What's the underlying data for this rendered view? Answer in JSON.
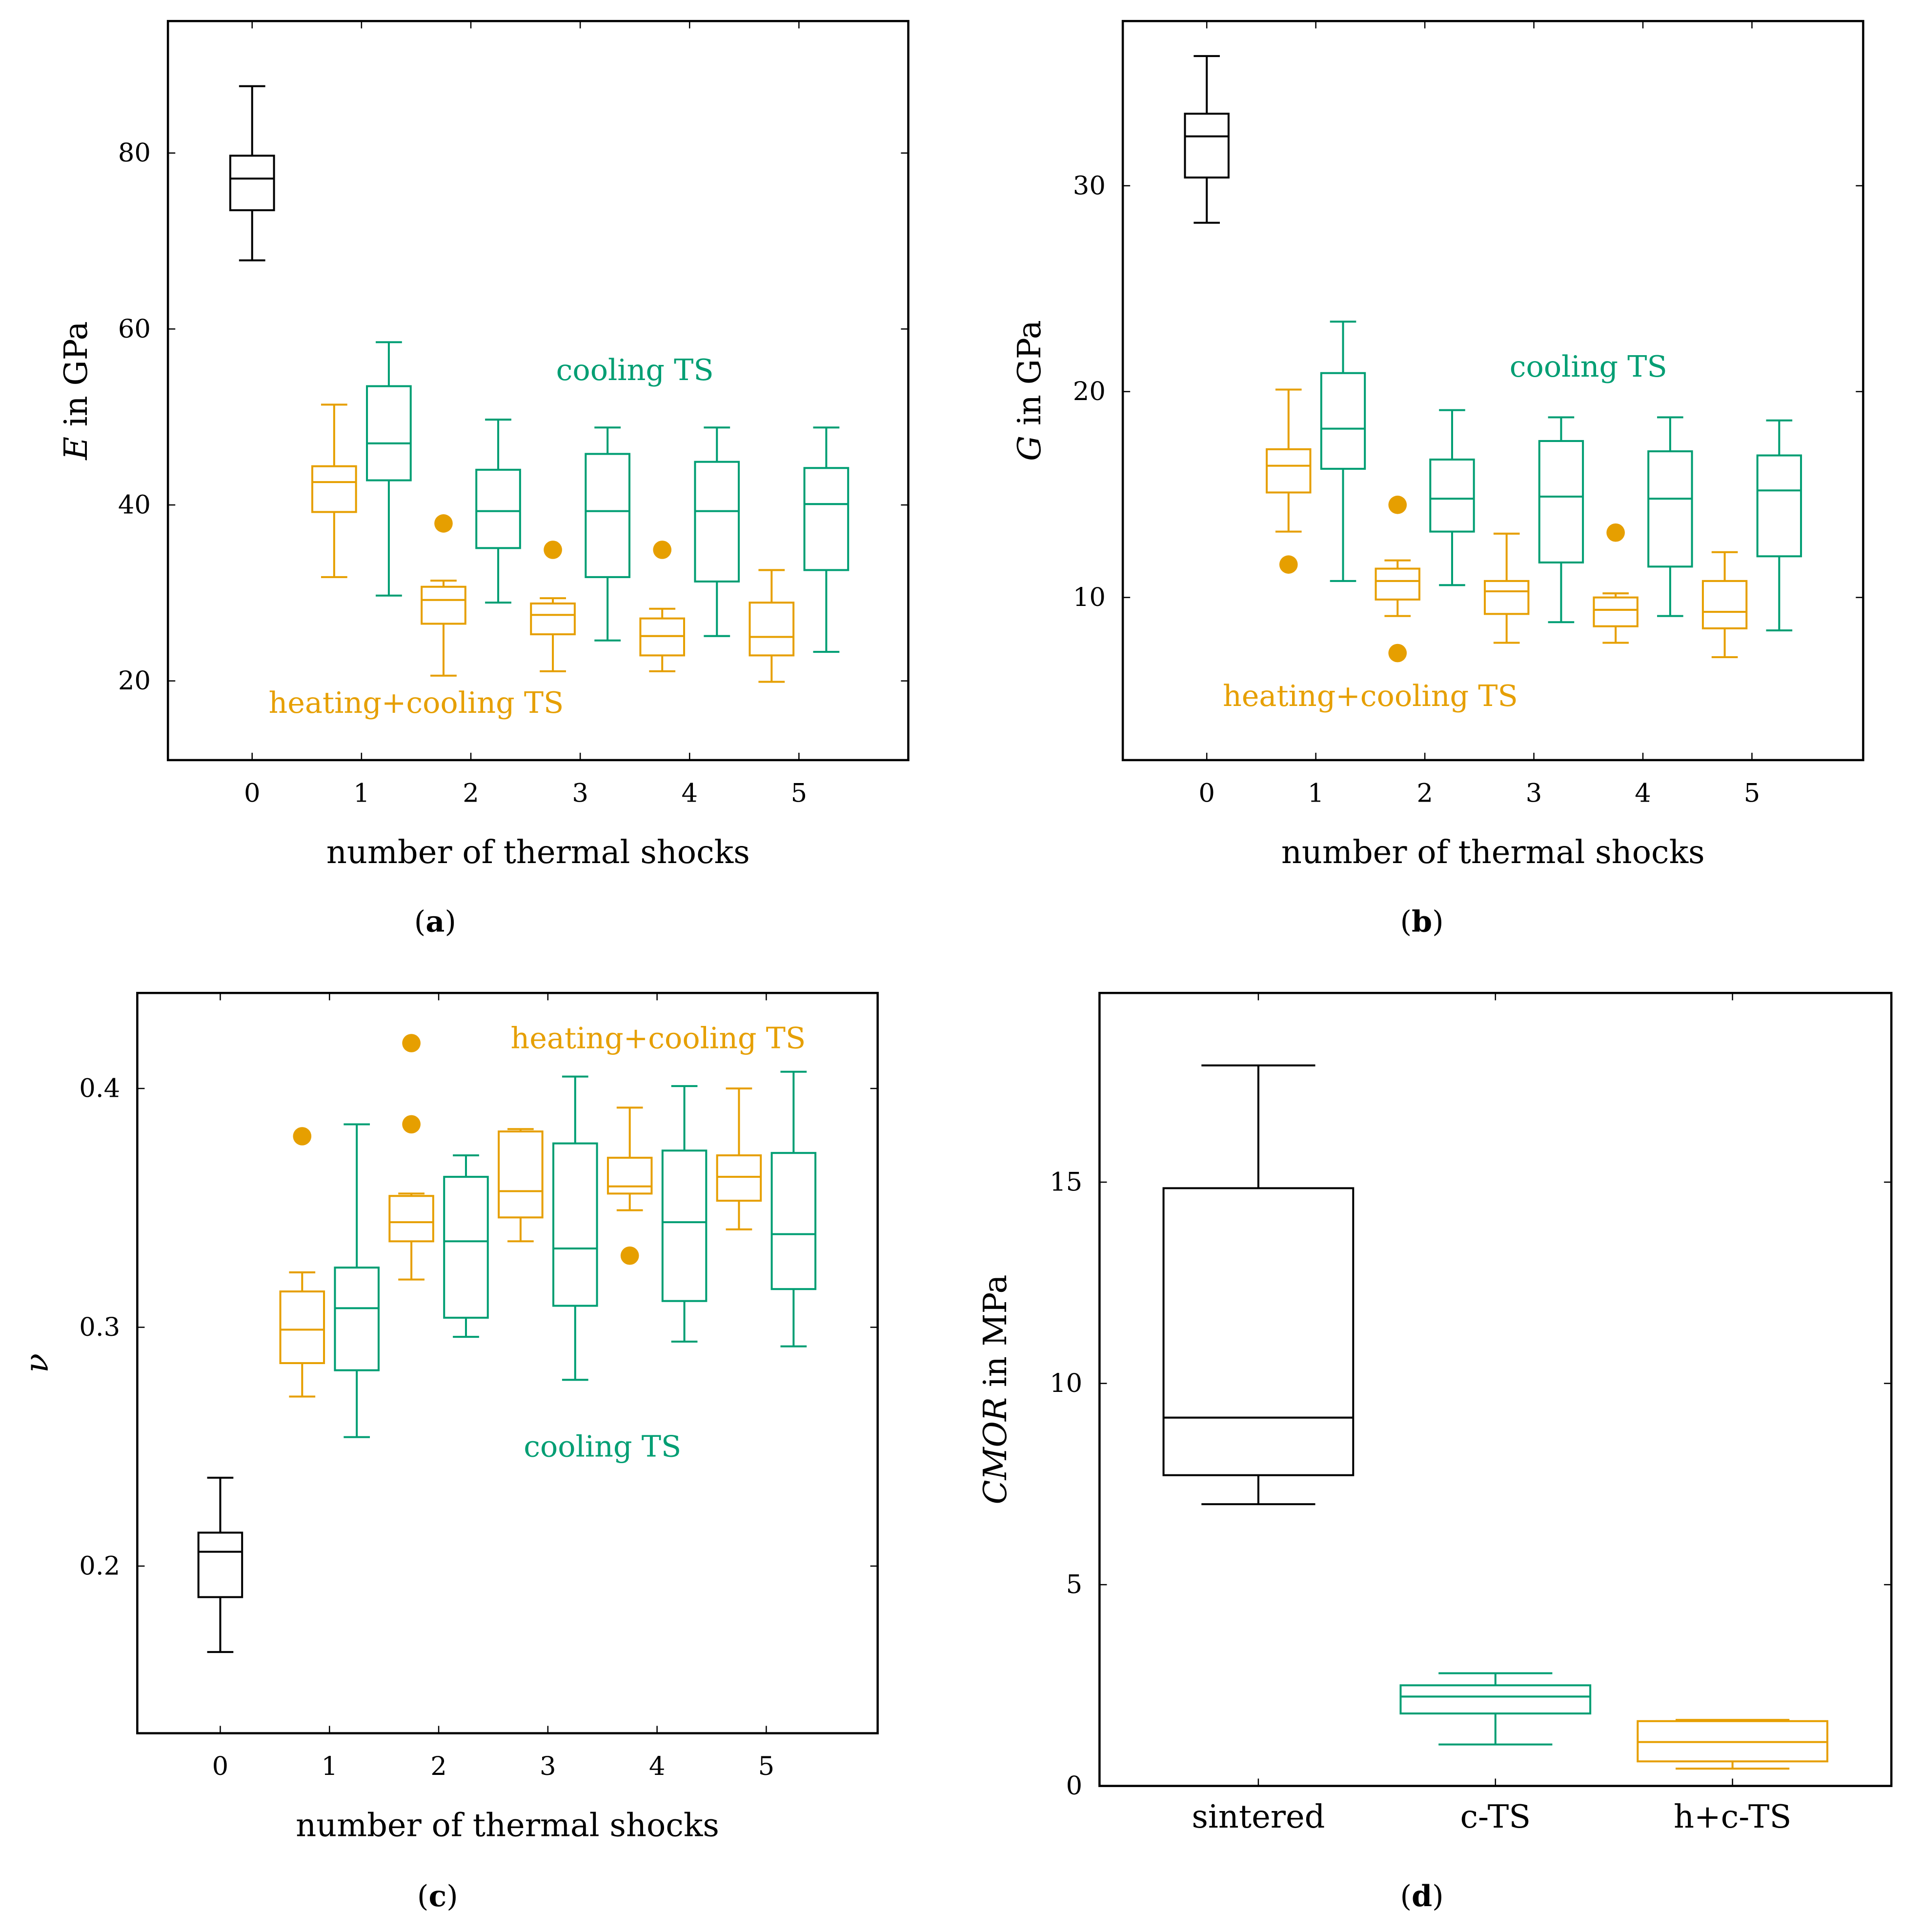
{
  "colors": {
    "sintered": "#000000",
    "heating_cooling": "#E69F00",
    "cooling": "#009E73"
  },
  "chart_data": [
    {
      "type": "box",
      "id": "a",
      "caption_letter": "a",
      "xlabel": "number of thermal shocks",
      "ylabel_var": "E",
      "ylabel_rest": " in GPa",
      "xlim": [
        -0.77,
        6.0
      ],
      "ylim": [
        11,
        95
      ],
      "xticks": [
        0,
        1,
        2,
        3,
        4,
        5
      ],
      "yticks": [
        20,
        40,
        60,
        80
      ],
      "box_width": 0.4,
      "annotations": [
        {
          "text": "cooling TS",
          "series": "cooling",
          "x": 3.5,
          "y": 55.3
        },
        {
          "text": "heating+cooling TS",
          "series": "heating_cooling",
          "x": 1.5,
          "y": 17.5
        }
      ],
      "boxes": [
        {
          "series": "sintered",
          "x": 0,
          "low": 67.8,
          "q1": 73.5,
          "median": 77.1,
          "q3": 79.7,
          "high": 87.6,
          "outliers": []
        },
        {
          "series": "heating_cooling",
          "x": 0.75,
          "low": 31.8,
          "q1": 39.2,
          "median": 42.6,
          "q3": 44.4,
          "high": 51.4,
          "outliers": []
        },
        {
          "series": "cooling",
          "x": 1.25,
          "low": 29.7,
          "q1": 42.8,
          "median": 47.0,
          "q3": 53.5,
          "high": 58.5,
          "outliers": []
        },
        {
          "series": "heating_cooling",
          "x": 1.75,
          "low": 20.6,
          "q1": 26.5,
          "median": 29.2,
          "q3": 30.7,
          "high": 31.4,
          "outliers": [
            37.9
          ]
        },
        {
          "series": "cooling",
          "x": 2.25,
          "low": 28.9,
          "q1": 35.1,
          "median": 39.3,
          "q3": 44.0,
          "high": 49.7,
          "outliers": []
        },
        {
          "series": "heating_cooling",
          "x": 2.75,
          "low": 21.1,
          "q1": 25.3,
          "median": 27.5,
          "q3": 28.8,
          "high": 29.4,
          "outliers": [
            34.9
          ]
        },
        {
          "series": "cooling",
          "x": 3.25,
          "low": 24.6,
          "q1": 31.8,
          "median": 39.3,
          "q3": 45.8,
          "high": 48.8,
          "outliers": []
        },
        {
          "series": "heating_cooling",
          "x": 3.75,
          "low": 21.1,
          "q1": 22.9,
          "median": 25.1,
          "q3": 27.1,
          "high": 28.2,
          "outliers": [
            34.9
          ]
        },
        {
          "series": "cooling",
          "x": 4.25,
          "low": 25.1,
          "q1": 31.3,
          "median": 39.3,
          "q3": 44.9,
          "high": 48.8,
          "outliers": []
        },
        {
          "series": "heating_cooling",
          "x": 4.75,
          "low": 19.9,
          "q1": 22.9,
          "median": 25.0,
          "q3": 28.9,
          "high": 32.6,
          "outliers": []
        },
        {
          "series": "cooling",
          "x": 5.25,
          "low": 23.3,
          "q1": 32.6,
          "median": 40.1,
          "q3": 44.2,
          "high": 48.8,
          "outliers": []
        }
      ]
    },
    {
      "type": "box",
      "id": "b",
      "caption_letter": "b",
      "xlabel": "number of thermal shocks",
      "ylabel_var": "G",
      "ylabel_rest": " in GPa",
      "xlim": [
        -0.77,
        6.02
      ],
      "ylim": [
        2.1,
        38.0
      ],
      "xticks": [
        0,
        1,
        2,
        3,
        4,
        5
      ],
      "yticks": [
        10,
        20,
        30
      ],
      "box_width": 0.4,
      "annotations": [
        {
          "text": "cooling TS",
          "series": "cooling",
          "x": 3.5,
          "y": 21.2
        },
        {
          "text": "heating+cooling TS",
          "series": "heating_cooling",
          "x": 1.5,
          "y": 5.2
        }
      ],
      "boxes": [
        {
          "series": "sintered",
          "x": 0,
          "low": 28.2,
          "q1": 30.4,
          "median": 32.4,
          "q3": 33.5,
          "high": 36.3,
          "outliers": []
        },
        {
          "series": "heating_cooling",
          "x": 0.75,
          "low": 13.2,
          "q1": 15.1,
          "median": 16.4,
          "q3": 17.2,
          "high": 20.1,
          "outliers": [
            11.6
          ]
        },
        {
          "series": "cooling",
          "x": 1.25,
          "low": 10.8,
          "q1": 16.25,
          "median": 18.2,
          "q3": 20.9,
          "high": 23.4,
          "outliers": []
        },
        {
          "series": "heating_cooling",
          "x": 1.75,
          "low": 9.1,
          "q1": 9.9,
          "median": 10.8,
          "q3": 11.4,
          "high": 11.8,
          "outliers": [
            14.5,
            7.3
          ]
        },
        {
          "series": "cooling",
          "x": 2.25,
          "low": 10.6,
          "q1": 13.2,
          "median": 14.8,
          "q3": 16.7,
          "high": 19.1,
          "outliers": []
        },
        {
          "series": "heating_cooling",
          "x": 2.75,
          "low": 7.8,
          "q1": 9.2,
          "median": 10.3,
          "q3": 10.8,
          "high": 13.1,
          "outliers": []
        },
        {
          "series": "cooling",
          "x": 3.25,
          "low": 8.8,
          "q1": 11.7,
          "median": 14.9,
          "q3": 17.6,
          "high": 18.75,
          "outliers": []
        },
        {
          "series": "heating_cooling",
          "x": 3.75,
          "low": 7.8,
          "q1": 8.6,
          "median": 9.4,
          "q3": 10.0,
          "high": 10.2,
          "outliers": [
            13.15
          ]
        },
        {
          "series": "cooling",
          "x": 4.25,
          "low": 9.1,
          "q1": 11.5,
          "median": 14.8,
          "q3": 17.1,
          "high": 18.75,
          "outliers": []
        },
        {
          "series": "heating_cooling",
          "x": 4.75,
          "low": 7.1,
          "q1": 8.5,
          "median": 9.3,
          "q3": 10.8,
          "high": 12.2,
          "outliers": []
        },
        {
          "series": "cooling",
          "x": 5.25,
          "low": 8.4,
          "q1": 12.0,
          "median": 15.2,
          "q3": 16.9,
          "high": 18.6,
          "outliers": []
        }
      ]
    },
    {
      "type": "box",
      "id": "c",
      "caption_letter": "c",
      "xlabel": "number of thermal shocks",
      "ylabel_var": "ν",
      "ylabel_rest": "",
      "xlim": [
        -0.76,
        6.02
      ],
      "ylim": [
        0.13,
        0.44
      ],
      "xticks": [
        0,
        1,
        2,
        3,
        4,
        5
      ],
      "yticks": [
        0.2,
        0.3,
        0.4
      ],
      "box_width": 0.4,
      "annotations": [
        {
          "text": "heating+cooling TS",
          "series": "heating_cooling",
          "x": 4.01,
          "y": 0.421
        },
        {
          "text": "cooling TS",
          "series": "cooling",
          "x": 3.5,
          "y": 0.25
        }
      ],
      "boxes": [
        {
          "series": "sintered",
          "x": 0,
          "low": 0.164,
          "q1": 0.187,
          "median": 0.206,
          "q3": 0.214,
          "high": 0.237,
          "outliers": []
        },
        {
          "series": "heating_cooling",
          "x": 0.75,
          "low": 0.271,
          "q1": 0.285,
          "median": 0.299,
          "q3": 0.315,
          "high": 0.323,
          "outliers": [
            0.38
          ]
        },
        {
          "series": "cooling",
          "x": 1.25,
          "low": 0.254,
          "q1": 0.282,
          "median": 0.308,
          "q3": 0.325,
          "high": 0.385,
          "outliers": []
        },
        {
          "series": "heating_cooling",
          "x": 1.75,
          "low": 0.32,
          "q1": 0.336,
          "median": 0.344,
          "q3": 0.355,
          "high": 0.356,
          "outliers": [
            0.419,
            0.385
          ]
        },
        {
          "series": "cooling",
          "x": 2.25,
          "low": 0.296,
          "q1": 0.304,
          "median": 0.336,
          "q3": 0.363,
          "high": 0.372,
          "outliers": []
        },
        {
          "series": "heating_cooling",
          "x": 2.75,
          "low": 0.336,
          "q1": 0.346,
          "median": 0.357,
          "q3": 0.382,
          "high": 0.383,
          "outliers": []
        },
        {
          "series": "cooling",
          "x": 3.25,
          "low": 0.278,
          "q1": 0.309,
          "median": 0.333,
          "q3": 0.377,
          "high": 0.405,
          "outliers": []
        },
        {
          "series": "heating_cooling",
          "x": 3.75,
          "low": 0.349,
          "q1": 0.356,
          "median": 0.359,
          "q3": 0.371,
          "high": 0.392,
          "outliers": [
            0.33
          ]
        },
        {
          "series": "cooling",
          "x": 4.25,
          "low": 0.294,
          "q1": 0.311,
          "median": 0.344,
          "q3": 0.374,
          "high": 0.401,
          "outliers": []
        },
        {
          "series": "heating_cooling",
          "x": 4.75,
          "low": 0.341,
          "q1": 0.353,
          "median": 0.363,
          "q3": 0.372,
          "high": 0.4,
          "outliers": []
        },
        {
          "series": "cooling",
          "x": 5.25,
          "low": 0.292,
          "q1": 0.316,
          "median": 0.339,
          "q3": 0.373,
          "high": 0.407,
          "outliers": []
        }
      ]
    },
    {
      "type": "box",
      "id": "d",
      "caption_letter": "d",
      "xlabel": "",
      "ylabel_var": "CMOR",
      "ylabel_rest": " in MPa",
      "xlim": [
        -0.67,
        2.67
      ],
      "ylim": [
        0,
        19.7
      ],
      "xticks": [
        0,
        1,
        2
      ],
      "xticklabels": [
        "sintered",
        "c-TS",
        "h+c-TS"
      ],
      "yticks": [
        0,
        5,
        10,
        15
      ],
      "box_width": 0.8,
      "annotations": [],
      "boxes": [
        {
          "series": "sintered",
          "x": 0,
          "low": 7.0,
          "q1": 7.72,
          "median": 9.15,
          "q3": 14.85,
          "high": 17.9,
          "outliers": []
        },
        {
          "series": "cooling",
          "x": 1,
          "low": 1.03,
          "q1": 1.8,
          "median": 2.22,
          "q3": 2.5,
          "high": 2.8,
          "outliers": []
        },
        {
          "series": "heating_cooling",
          "x": 2,
          "low": 0.43,
          "q1": 0.61,
          "median": 1.09,
          "q3": 1.61,
          "high": 1.64,
          "outliers": []
        }
      ]
    }
  ]
}
